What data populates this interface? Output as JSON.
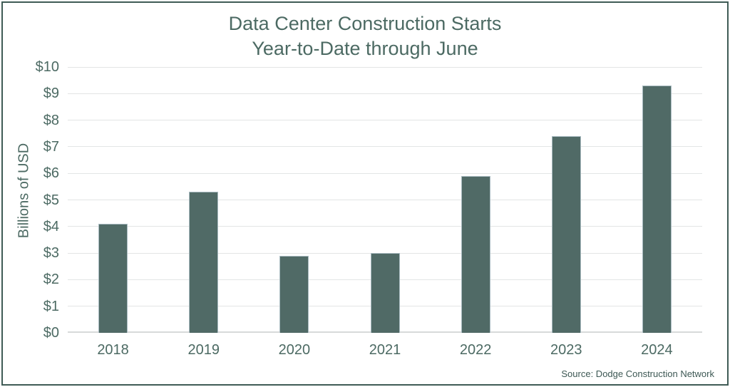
{
  "chart": {
    "title_line1": "Data Center Construction Starts",
    "title_line2": "Year-to-Date through June",
    "ylabel": "Billions of USD",
    "source": "Source: Dodge Construction Network"
  },
  "chart_data": {
    "type": "bar",
    "title": "Data Center Construction Starts Year-to-Date through June",
    "categories": [
      "2018",
      "2019",
      "2020",
      "2021",
      "2022",
      "2023",
      "2024"
    ],
    "values": [
      4.1,
      5.3,
      2.9,
      3.0,
      5.9,
      7.4,
      9.3
    ],
    "xlabel": "",
    "ylabel": "Billions of USD",
    "ylim": [
      0,
      10
    ],
    "ytick_step": 1,
    "ytick_labels": [
      "$0",
      "$1",
      "$2",
      "$3",
      "$4",
      "$5",
      "$6",
      "$7",
      "$8",
      "$9",
      "$10"
    ],
    "grid": true,
    "legend": false,
    "annotation": "Source: Dodge Construction Network",
    "colors": {
      "bar_fill": "#506a66",
      "bar_border": "#a9bbc1",
      "gridline": "#e3e5e5",
      "axis_line": "#d7dada",
      "text": "#4c6a63",
      "source_text": "#3d5854",
      "frame_border": "#3f5b55",
      "background": "#ffffff"
    }
  }
}
